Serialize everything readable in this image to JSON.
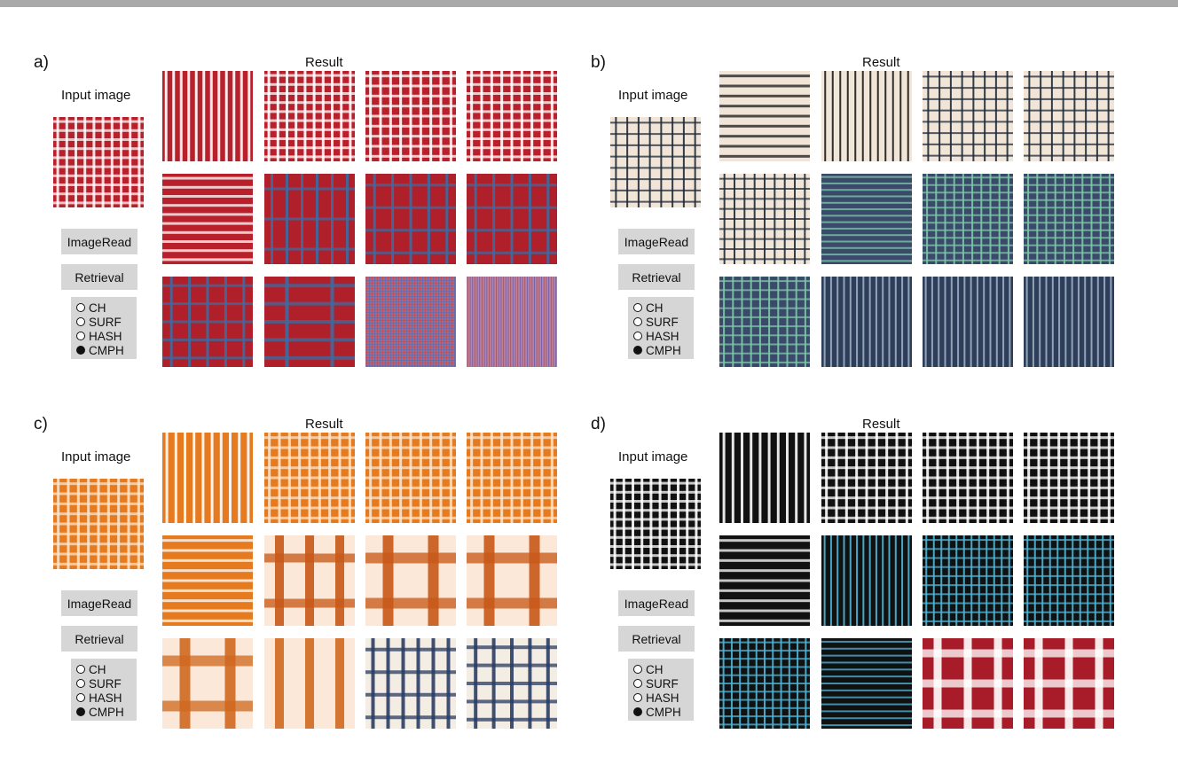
{
  "panels": [
    {
      "letter": "a)",
      "result_label": "Result",
      "input_label": "Input image",
      "imageread_label": "ImageRead",
      "retrieval_label": "Retrieval",
      "options": [
        {
          "label": "CH",
          "selected": false
        },
        {
          "label": "SURF",
          "selected": false
        },
        {
          "label": "HASH",
          "selected": false
        },
        {
          "label": "CMPH",
          "selected": true
        }
      ],
      "input_pattern": {
        "bg": "#b8202c",
        "line": "#ffffff",
        "v": 10,
        "h": 10,
        "w": 3,
        "alpha": 0.85
      },
      "results": [
        {
          "bg": "#b8202c",
          "line": "#ffffff",
          "v": 12,
          "h": 0,
          "w": 3
        },
        {
          "bg": "#b8202c",
          "line": "#ffffff",
          "v": 10,
          "h": 10,
          "w": 3
        },
        {
          "bg": "#b8202c",
          "line": "#ffffff",
          "v": 9,
          "h": 9,
          "w": 3
        },
        {
          "bg": "#b8202c",
          "line": "#ffffff",
          "v": 9,
          "h": 10,
          "w": 3
        },
        {
          "bg": "#b8202c",
          "line": "#ffffff",
          "v": 0,
          "h": 10,
          "w": 3
        },
        {
          "bg": "#b0202a",
          "line": "#3d6aa0",
          "v": 6,
          "h": 3,
          "w": 3
        },
        {
          "bg": "#b0202a",
          "line": "#3d6aa0",
          "v": 5,
          "h": 4,
          "w": 3
        },
        {
          "bg": "#b0202a",
          "line": "#3d6aa0",
          "v": 5,
          "h": 4,
          "w": 3
        },
        {
          "bg": "#b0202a",
          "line": "#3d6aa0",
          "v": 5,
          "h": 5,
          "w": 3
        },
        {
          "bg": "#b0202a",
          "line": "#3d6aa0",
          "v": 2,
          "h": 5,
          "w": 4
        },
        {
          "bg": "#c26070",
          "line": "#5f6fb0",
          "v": 34,
          "h": 34,
          "w": 1
        },
        {
          "bg": "#c88090",
          "line": "#6a5fb0",
          "v": 38,
          "h": 0,
          "w": 1
        }
      ]
    },
    {
      "letter": "b)",
      "result_label": "Result",
      "input_label": "Input image",
      "imageread_label": "ImageRead",
      "retrieval_label": "Retrieval",
      "options": [
        {
          "label": "CH",
          "selected": false
        },
        {
          "label": "SURF",
          "selected": false
        },
        {
          "label": "HASH",
          "selected": false
        },
        {
          "label": "CMPH",
          "selected": true
        }
      ],
      "input_pattern": {
        "bg": "#f1e5d8",
        "line": "#1e2a38",
        "v": 8,
        "h": 8,
        "w": 2
      },
      "results": [
        {
          "bg": "#f1e5d8",
          "line": "#1a1a1a",
          "v": 0,
          "h": 9,
          "w": 3
        },
        {
          "bg": "#f1e5d8",
          "line": "#1a1a1a",
          "v": 12,
          "h": 0,
          "w": 2
        },
        {
          "bg": "#f1e5d8",
          "line": "#1e2a38",
          "v": 8,
          "h": 8,
          "w": 2
        },
        {
          "bg": "#f1e5d8",
          "line": "#1e2a38",
          "v": 8,
          "h": 8,
          "w": 2
        },
        {
          "bg": "#f1e5d8",
          "line": "#1e2a38",
          "v": 9,
          "h": 9,
          "w": 2
        },
        {
          "bg": "#3b4a6a",
          "line": "#7ec8a8",
          "v": 0,
          "h": 14,
          "w": 2
        },
        {
          "bg": "#3b4a6a",
          "line": "#7ec8a8",
          "v": 10,
          "h": 12,
          "w": 2
        },
        {
          "bg": "#3b4a6a",
          "line": "#7ec8a8",
          "v": 10,
          "h": 12,
          "w": 2
        },
        {
          "bg": "#3b4a6a",
          "line": "#7ec8a8",
          "v": 10,
          "h": 10,
          "w": 2
        },
        {
          "bg": "#2e3d5a",
          "line": "#9ab0c0",
          "v": 14,
          "h": 0,
          "w": 2
        },
        {
          "bg": "#2e3d5a",
          "line": "#9ab0c0",
          "v": 14,
          "h": 0,
          "w": 2
        },
        {
          "bg": "#2e3d5a",
          "line": "#9ab0c0",
          "v": 14,
          "h": 0,
          "w": 2
        }
      ]
    },
    {
      "letter": "c)",
      "result_label": "Result",
      "input_label": "Input image",
      "imageread_label": "ImageRead",
      "retrieval_label": "Retrieval",
      "options": [
        {
          "label": "CH",
          "selected": false
        },
        {
          "label": "SURF",
          "selected": false
        },
        {
          "label": "HASH",
          "selected": false
        },
        {
          "label": "CMPH",
          "selected": true
        }
      ],
      "input_pattern": {
        "bg": "#e57a1f",
        "line": "#fbe2c8",
        "v": 9,
        "h": 9,
        "w": 3
      },
      "results": [
        {
          "bg": "#e57a1f",
          "line": "#ffffff",
          "v": 10,
          "h": 0,
          "w": 3
        },
        {
          "bg": "#e57a1f",
          "line": "#fbe2c8",
          "v": 9,
          "h": 9,
          "w": 3
        },
        {
          "bg": "#e57a1f",
          "line": "#fbe2c8",
          "v": 9,
          "h": 9,
          "w": 3
        },
        {
          "bg": "#e57a1f",
          "line": "#fbe2c8",
          "v": 9,
          "h": 9,
          "w": 3
        },
        {
          "bg": "#e57a1f",
          "line": "#ffffff",
          "v": 0,
          "h": 9,
          "w": 3
        },
        {
          "bg": "#fbe8d8",
          "line": "#c85818",
          "v": 3,
          "h": 2,
          "w": 10
        },
        {
          "bg": "#fbe8d8",
          "line": "#c85818",
          "v": 2,
          "h": 2,
          "w": 12
        },
        {
          "bg": "#fbe8d8",
          "line": "#c85818",
          "v": 2,
          "h": 2,
          "w": 12
        },
        {
          "bg": "#fbe8d8",
          "line": "#d06820",
          "v": 2,
          "h": 2,
          "w": 12
        },
        {
          "bg": "#fbe8d8",
          "line": "#d06820",
          "v": 3,
          "h": 0,
          "w": 10
        },
        {
          "bg": "#f4ede4",
          "line": "#2a3d64",
          "v": 6,
          "h": 4,
          "w": 4
        },
        {
          "bg": "#f4ede4",
          "line": "#2a3d64",
          "v": 5,
          "h": 5,
          "w": 4
        }
      ]
    },
    {
      "letter": "d)",
      "result_label": "Result",
      "input_label": "Input image",
      "imageread_label": "ImageRead",
      "retrieval_label": "Retrieval",
      "options": [
        {
          "label": "CH",
          "selected": false
        },
        {
          "label": "SURF",
          "selected": false
        },
        {
          "label": "HASH",
          "selected": false
        },
        {
          "label": "CMPH",
          "selected": true
        }
      ],
      "input_pattern": {
        "bg": "#111111",
        "line": "#ffffff",
        "v": 10,
        "h": 10,
        "w": 3
      },
      "results": [
        {
          "bg": "#111111",
          "line": "#ffffff",
          "v": 10,
          "h": 0,
          "w": 3
        },
        {
          "bg": "#111111",
          "line": "#ffffff",
          "v": 9,
          "h": 9,
          "w": 3
        },
        {
          "bg": "#111111",
          "line": "#ffffff",
          "v": 9,
          "h": 9,
          "w": 3
        },
        {
          "bg": "#111111",
          "line": "#ffffff",
          "v": 9,
          "h": 9,
          "w": 3
        },
        {
          "bg": "#111111",
          "line": "#ffffff",
          "v": 0,
          "h": 9,
          "w": 3
        },
        {
          "bg": "#111111",
          "line": "#4fb6d8",
          "v": 14,
          "h": 0,
          "w": 2
        },
        {
          "bg": "#111111",
          "line": "#4fb6d8",
          "v": 12,
          "h": 10,
          "w": 2
        },
        {
          "bg": "#111111",
          "line": "#4fb6d8",
          "v": 12,
          "h": 10,
          "w": 2
        },
        {
          "bg": "#111111",
          "line": "#4fb6d8",
          "v": 11,
          "h": 11,
          "w": 2
        },
        {
          "bg": "#111111",
          "line": "#4fb6d8",
          "v": 0,
          "h": 13,
          "w": 2
        },
        {
          "bg": "#a81c2a",
          "line": "#ffffff",
          "v": 3,
          "h": 3,
          "w": 9
        },
        {
          "bg": "#a81c2a",
          "line": "#ffffff",
          "v": 3,
          "h": 3,
          "w": 9
        }
      ]
    }
  ]
}
